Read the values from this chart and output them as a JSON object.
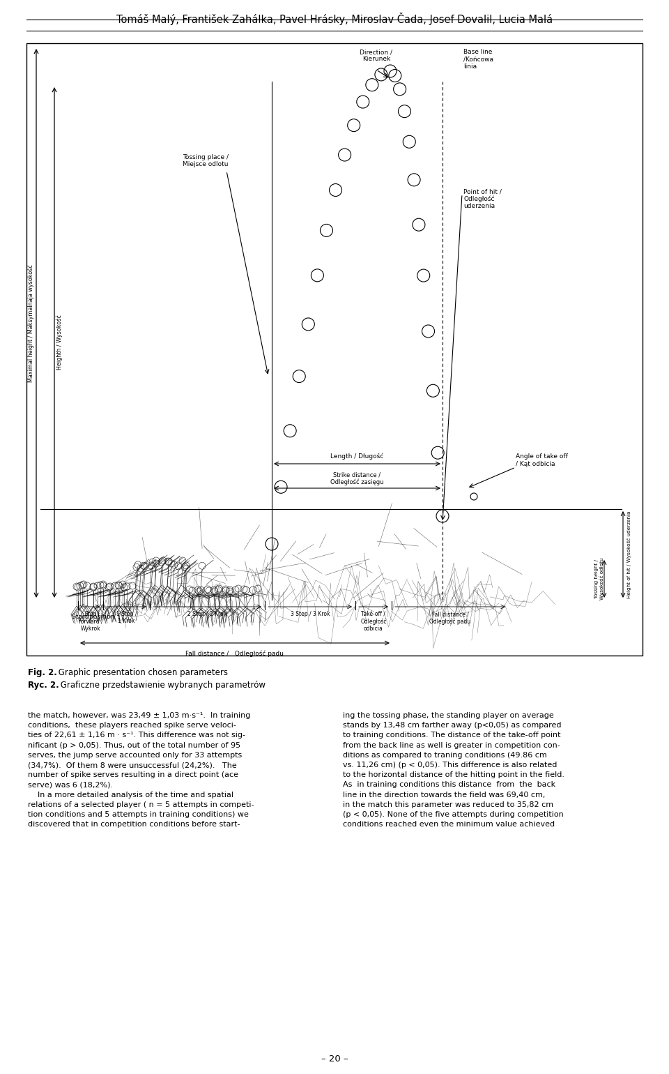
{
  "header_text": "Tomáš Malý, František Zahálka, Pavel Hrásky, Miroslav Čada, Josef Dovalil, Lucia Malá",
  "fig_caption_en_bold": "Fig. 2.",
  "fig_caption_en_normal": " Graphic presentation chosen parameters",
  "fig_caption_pl_bold": "Ryc. 2.",
  "fig_caption_pl_normal": " Graficzne przedstawienie wybranych parametrów",
  "page_number": "– 20 –",
  "left_col_text": [
    "the match, however, was 23,49 ± 1,03 m·s⁻¹.  In training",
    "conditions,  these players reached spike serve veloci-",
    "ties of 22,61 ± 1,16 m · s⁻¹. This difference was not sig-",
    "nificant (p > 0,05). Thus, out of the total number of 95",
    "serves, the jump serve accounted only for 33 attempts",
    "(34,7%).  Of them 8 were unsuccessful (24,2%).   The",
    "number of spike serves resulting in a direct point (ace",
    "serve) was 6 (18,2%).",
    "    In a more detailed analysis of the time and spatial",
    "relations of a selected player ( n = 5 attempts in competi-",
    "tion conditions and 5 attempts in training conditions) we",
    "discovered that in competition conditions before start-"
  ],
  "right_col_text": [
    "ing the tossing phase, the standing player on average",
    "stands by 13,48 cm farther away (p<0,05) as compared",
    "to training conditions. The distance of the take-off point",
    "from the back line as well is greater in competition con-",
    "ditions as compared to traning conditions (49.86 cm",
    "vs. 11,26 cm) (p < 0,05). This difference is also related",
    "to the horizontal distance of the hitting point in the field.",
    "As  in training conditions this distance  from  the  back",
    "line in the direction towards the field was 69,40 cm,",
    "in the match this parameter was reduced to 35,82 cm",
    "(p < 0,05). None of the five attempts during competition",
    "conditions reached even the minimum value achieved"
  ],
  "bg_color": "#ffffff",
  "text_color": "#000000"
}
